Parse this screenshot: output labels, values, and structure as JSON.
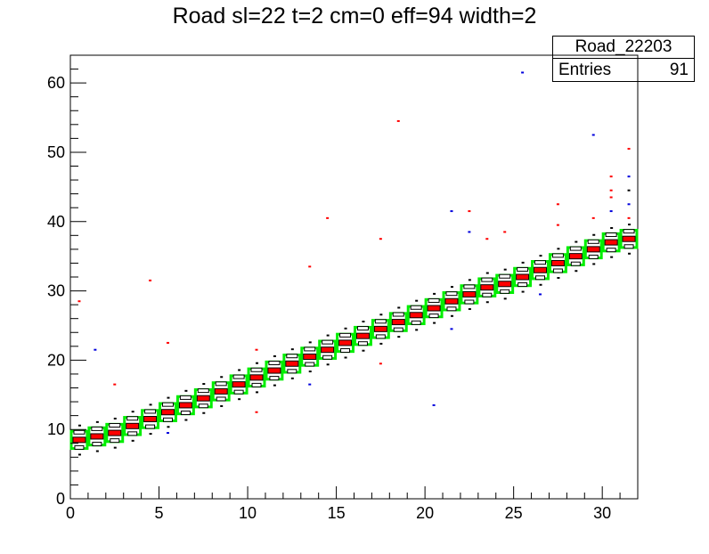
{
  "chart_data": {
    "type": "heatmap",
    "title": "Road sl=22 t=2 cm=0 eff=94 width=2",
    "xlabel": "",
    "ylabel": "",
    "xlim": [
      0,
      32
    ],
    "ylim": [
      0,
      64
    ],
    "x_ticks": [
      "0",
      "5",
      "10",
      "15",
      "20",
      "25",
      "30"
    ],
    "y_ticks": [
      "0",
      "10",
      "20",
      "30",
      "40",
      "50",
      "60"
    ],
    "stats": {
      "name": "Road_22203",
      "entries_label": "Entries",
      "entries_value": "91"
    },
    "colors": {
      "road": "#00ee00",
      "hit": "#ff0000",
      "alt_hit": "#0000dd",
      "bin": "#000000"
    },
    "road_bins": [
      [
        0,
        8.5
      ],
      [
        1,
        9.0
      ],
      [
        2,
        9.5
      ],
      [
        3,
        10.5
      ],
      [
        4,
        11.5
      ],
      [
        5,
        12.5
      ],
      [
        6,
        13.5
      ],
      [
        7,
        14.5
      ],
      [
        8,
        15.5
      ],
      [
        9,
        16.5
      ],
      [
        10,
        17.5
      ],
      [
        11,
        18.5
      ],
      [
        12,
        19.5
      ],
      [
        13,
        20.5
      ],
      [
        14,
        21.5
      ],
      [
        15,
        22.5
      ],
      [
        16,
        23.5
      ],
      [
        17,
        24.5
      ],
      [
        18,
        25.5
      ],
      [
        19,
        26.5
      ],
      [
        20,
        27.5
      ],
      [
        21,
        28.5
      ],
      [
        22,
        29.5
      ],
      [
        23,
        30.5
      ],
      [
        24,
        31.0
      ],
      [
        25,
        32.0
      ],
      [
        26,
        33.0
      ],
      [
        27,
        34.0
      ],
      [
        28,
        35.0
      ],
      [
        29,
        36.0
      ],
      [
        30,
        37.0
      ],
      [
        31,
        37.5
      ]
    ],
    "outliers": [
      {
        "x": 1.4,
        "y": 21.5,
        "color": "#0000dd"
      },
      {
        "x": 2.5,
        "y": 16.5,
        "color": "#ff0000"
      },
      {
        "x": 4.5,
        "y": 31.5,
        "color": "#ff0000"
      },
      {
        "x": 5.5,
        "y": 9.5,
        "color": "#0000dd"
      },
      {
        "x": 5.5,
        "y": 22.5,
        "color": "#ff0000"
      },
      {
        "x": 10.5,
        "y": 12.5,
        "color": "#ff0000"
      },
      {
        "x": 10.5,
        "y": 21.5,
        "color": "#ff0000"
      },
      {
        "x": 13.5,
        "y": 33.5,
        "color": "#ff0000"
      },
      {
        "x": 13.5,
        "y": 16.5,
        "color": "#0000dd"
      },
      {
        "x": 14.5,
        "y": 40.5,
        "color": "#ff0000"
      },
      {
        "x": 17.5,
        "y": 37.5,
        "color": "#ff0000"
      },
      {
        "x": 17.5,
        "y": 19.5,
        "color": "#ff0000"
      },
      {
        "x": 18.5,
        "y": 54.5,
        "color": "#ff0000"
      },
      {
        "x": 20.5,
        "y": 13.5,
        "color": "#0000dd"
      },
      {
        "x": 21.5,
        "y": 41.5,
        "color": "#0000dd"
      },
      {
        "x": 22.5,
        "y": 41.5,
        "color": "#ff0000"
      },
      {
        "x": 22.5,
        "y": 38.5,
        "color": "#0000dd"
      },
      {
        "x": 23.5,
        "y": 37.5,
        "color": "#ff0000"
      },
      {
        "x": 24.5,
        "y": 38.5,
        "color": "#ff0000"
      },
      {
        "x": 25.5,
        "y": 61.5,
        "color": "#0000dd"
      },
      {
        "x": 27.5,
        "y": 42.5,
        "color": "#ff0000"
      },
      {
        "x": 27.5,
        "y": 39.5,
        "color": "#ff0000"
      },
      {
        "x": 29.5,
        "y": 52.5,
        "color": "#0000dd"
      },
      {
        "x": 29.5,
        "y": 40.5,
        "color": "#ff0000"
      },
      {
        "x": 30.5,
        "y": 46.5,
        "color": "#ff0000"
      },
      {
        "x": 30.5,
        "y": 44.5,
        "color": "#ff0000"
      },
      {
        "x": 30.5,
        "y": 43.5,
        "color": "#ff0000"
      },
      {
        "x": 30.5,
        "y": 41.5,
        "color": "#0000dd"
      },
      {
        "x": 31.5,
        "y": 50.5,
        "color": "#ff0000"
      },
      {
        "x": 31.5,
        "y": 46.5,
        "color": "#0000dd"
      },
      {
        "x": 31.5,
        "y": 44.5,
        "color": "#000000"
      },
      {
        "x": 31.5,
        "y": 42.5,
        "color": "#0000dd"
      },
      {
        "x": 31.5,
        "y": 40.5,
        "color": "#ff0000"
      },
      {
        "x": 21.5,
        "y": 24.5,
        "color": "#0000dd"
      },
      {
        "x": 26.5,
        "y": 29.5,
        "color": "#0000dd"
      },
      {
        "x": 0.5,
        "y": 28.5,
        "color": "#ff0000"
      }
    ]
  }
}
